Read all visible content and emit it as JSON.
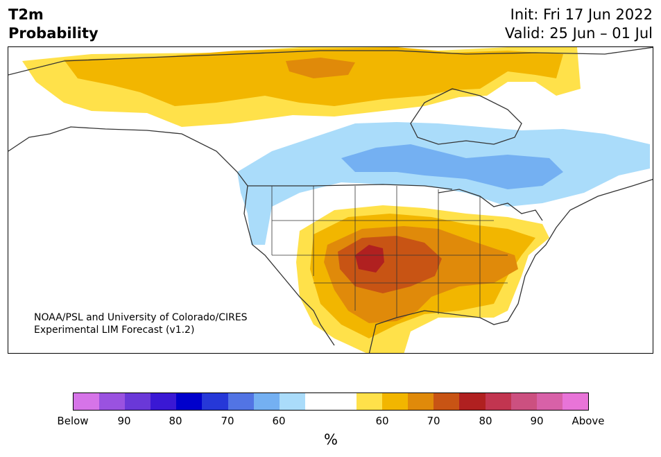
{
  "title": {
    "line1": "T2m",
    "line2": "Probability"
  },
  "header_right": {
    "init": "Init: Fri 17 Jun 2022",
    "valid": "Valid: 25 Jun – 01 Jul"
  },
  "credit": {
    "line1": "NOAA/PSL and University of Colorado/CIRES",
    "line2": "Experimental LIM Forecast (v1.2)"
  },
  "colorbar": {
    "unit": "%",
    "colors": [
      "#d674e8",
      "#9a52e0",
      "#6a38d8",
      "#3a18d4",
      "#0000cc",
      "#2638d8",
      "#5274e4",
      "#74b0f2",
      "#aadcfa",
      "#ffffff",
      "#ffffff",
      "#ffe14a",
      "#f2b600",
      "#e08a0a",
      "#c85414",
      "#b02020",
      "#c23550",
      "#cc5080",
      "#d861a8",
      "#e874d8"
    ],
    "tick_labels": [
      "Below",
      "90",
      "80",
      "70",
      "60",
      "60",
      "70",
      "80",
      "90",
      "Above"
    ]
  },
  "map_colors": {
    "above_60": "#ffe14a",
    "above_70": "#f2b600",
    "above_80": "#e08a0a",
    "above_90": "#c85414",
    "above_max": "#b02020",
    "below_60": "#aadcfa",
    "below_70": "#74b0f2",
    "land_outline": "#333333"
  }
}
